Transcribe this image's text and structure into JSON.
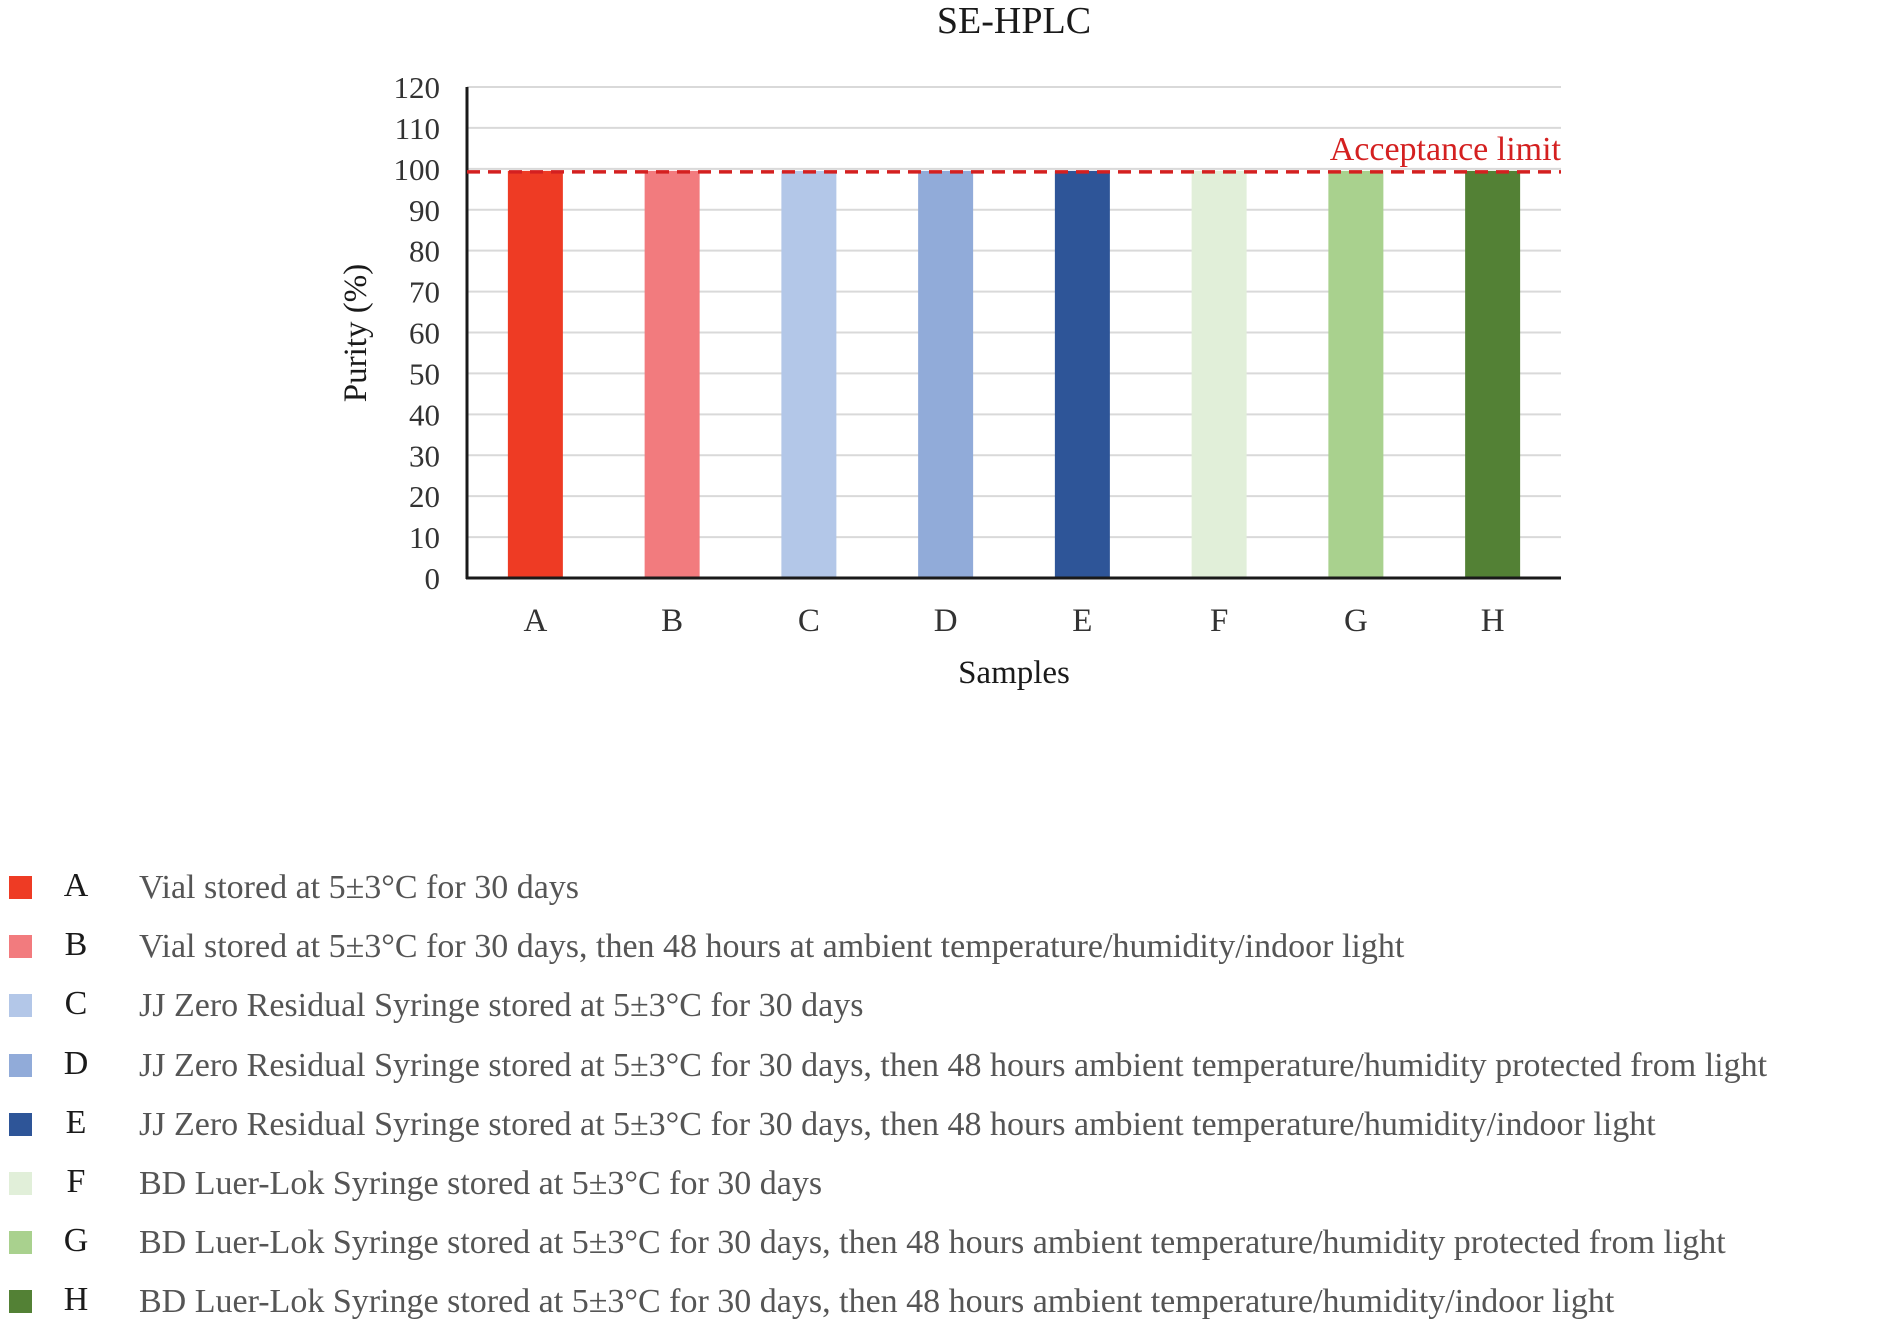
{
  "chart_data": {
    "type": "bar",
    "title": "SE-HPLC",
    "xlabel": "Samples",
    "ylabel": "Purity (%)",
    "ylim": [
      0,
      120
    ],
    "yticks": [
      0,
      10,
      20,
      30,
      40,
      50,
      60,
      70,
      80,
      90,
      100,
      110,
      120
    ],
    "grid": true,
    "categories": [
      "A",
      "B",
      "C",
      "D",
      "E",
      "F",
      "G",
      "H"
    ],
    "values": [
      99.5,
      99.5,
      99.5,
      99.5,
      99.5,
      99.5,
      99.5,
      99.5
    ],
    "colors": [
      "#ee3b24",
      "#f27b7e",
      "#b3c7e8",
      "#91abd9",
      "#2e5598",
      "#e1efd9",
      "#a9d18e",
      "#538135"
    ],
    "reference_line": {
      "label": "Acceptance limit",
      "value": 99,
      "color": "#d42020",
      "style": "dashed"
    }
  },
  "legend": {
    "items": [
      {
        "key": "A",
        "color": "#ee3b24",
        "description": "Vial stored at 5±3°C for 30 days"
      },
      {
        "key": "B",
        "color": "#f27b7e",
        "description": "Vial stored at 5±3°C for 30 days, then 48 hours at ambient temperature/humidity/indoor light"
      },
      {
        "key": "C",
        "color": "#b3c7e8",
        "description": "JJ Zero Residual Syringe stored at 5±3°C for 30 days"
      },
      {
        "key": "D",
        "color": "#91abd9",
        "description": "JJ Zero Residual Syringe stored at 5±3°C for 30 days, then 48 hours ambient temperature/humidity protected from light"
      },
      {
        "key": "E",
        "color": "#2e5598",
        "description": "JJ Zero Residual Syringe stored at 5±3°C for 30 days, then 48 hours ambient temperature/humidity/indoor light"
      },
      {
        "key": "F",
        "color": "#e1efd9",
        "description": "BD Luer-Lok Syringe stored at 5±3°C for 30 days"
      },
      {
        "key": "G",
        "color": "#a9d18e",
        "description": "BD Luer-Lok Syringe stored at 5±3°C for 30 days, then 48 hours ambient temperature/humidity protected from light"
      },
      {
        "key": "H",
        "color": "#538135",
        "description": "BD Luer-Lok Syringe stored at 5±3°C for 30 days, then 48 hours ambient temperature/humidity/indoor light"
      }
    ]
  }
}
